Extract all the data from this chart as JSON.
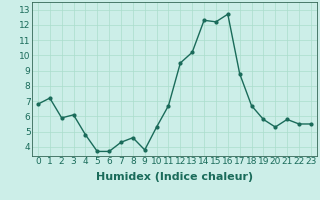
{
  "x": [
    0,
    1,
    2,
    3,
    4,
    5,
    6,
    7,
    8,
    9,
    10,
    11,
    12,
    13,
    14,
    15,
    16,
    17,
    18,
    19,
    20,
    21,
    22,
    23
  ],
  "y": [
    6.8,
    7.2,
    5.9,
    6.1,
    4.8,
    3.7,
    3.7,
    4.3,
    4.6,
    3.8,
    5.3,
    6.7,
    9.5,
    10.2,
    12.3,
    12.2,
    12.7,
    8.8,
    6.7,
    5.8,
    5.3,
    5.8,
    5.5,
    5.5
  ],
  "line_color": "#1a6b5a",
  "marker": "o",
  "marker_size": 2,
  "line_width": 1.0,
  "bg_color": "#cceee8",
  "grid_color": "#aaddcc",
  "xlabel": "Humidex (Indice chaleur)",
  "xlabel_fontsize": 8,
  "yticks": [
    4,
    5,
    6,
    7,
    8,
    9,
    10,
    11,
    12,
    13
  ],
  "xtick_labels": [
    "0",
    "1",
    "2",
    "3",
    "4",
    "5",
    "6",
    "7",
    "8",
    "9",
    "10",
    "11",
    "12",
    "13",
    "14",
    "15",
    "16",
    "17",
    "18",
    "19",
    "20",
    "21",
    "22",
    "23"
  ],
  "ylim": [
    3.4,
    13.5
  ],
  "xlim": [
    -0.5,
    23.5
  ],
  "tick_fontsize": 6.5,
  "spine_color": "#336655"
}
